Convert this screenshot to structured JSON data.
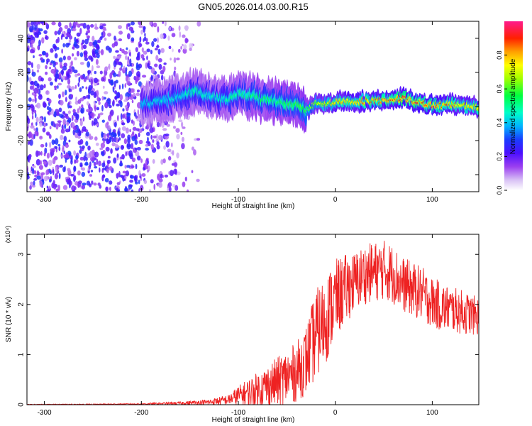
{
  "title": "GN05.2026.014.03.00.R15",
  "chart_data": [
    {
      "type": "heatmap",
      "xlabel": "Height of straight line (km)",
      "ylabel": "Frequency (Hz)",
      "xlim": [
        -318,
        148
      ],
      "ylim": [
        -50,
        50
      ],
      "xticks": [
        -300,
        -200,
        -100,
        0,
        100
      ],
      "yticks": [
        -40,
        -20,
        0,
        20,
        40
      ],
      "xtick_labels": [
        "-300",
        "-200",
        "-100",
        "0",
        "100"
      ],
      "ytick_labels": [
        "-40",
        "-20",
        "0",
        "20",
        "40"
      ],
      "colorbar": {
        "label": "Normalized spectral amplitude",
        "range": [
          0,
          1
        ],
        "ticks": [
          0.0,
          0.2,
          0.4,
          0.6,
          0.8
        ],
        "tick_labels": [
          "0.0",
          "0.2",
          "0.4",
          "0.6",
          "0.8"
        ],
        "colors": [
          "#ffffff",
          "#c9a8f2",
          "#8a2be2",
          "#1a1aff",
          "#00c8ff",
          "#00ff80",
          "#7fff00",
          "#ffff00",
          "#ff8c00",
          "#ff0000",
          "#ff1493"
        ]
      },
      "ridge": {
        "x": [
          -200,
          -180,
          -160,
          -145,
          -130,
          -110,
          -100,
          -80,
          -60,
          -40,
          -30,
          -20,
          -10,
          0,
          20,
          40,
          60,
          70,
          80,
          90,
          100,
          120,
          140,
          148
        ],
        "frequency": [
          2,
          3,
          6,
          9,
          6,
          4,
          8,
          5,
          3,
          1,
          -2,
          2,
          1,
          3,
          3,
          3,
          4,
          5,
          3,
          2,
          1,
          1,
          0,
          0
        ],
        "amplitude": [
          0.4,
          0.45,
          0.45,
          0.5,
          0.45,
          0.5,
          0.5,
          0.55,
          0.55,
          0.6,
          0.6,
          0.7,
          0.75,
          0.8,
          0.85,
          0.85,
          0.9,
          0.95,
          0.9,
          0.9,
          0.9,
          0.85,
          0.8,
          0.8
        ]
      },
      "noise_region": {
        "x_range": [
          -318,
          -200
        ],
        "amplitude": 0.25
      }
    },
    {
      "type": "line",
      "xlabel": "Height of straight line (km)",
      "ylabel": "SNR (10 * v/v)",
      "y_multiplier": "(x10⁴)",
      "xlim": [
        -318,
        148
      ],
      "ylim": [
        0,
        3.4
      ],
      "xticks": [
        -300,
        -200,
        -100,
        0,
        100
      ],
      "yticks": [
        0,
        1,
        2,
        3
      ],
      "xtick_labels": [
        "-300",
        "-200",
        "-100",
        "0",
        "100"
      ],
      "ytick_labels": [
        "0",
        "1",
        "2",
        "3"
      ],
      "color": "#ff0000",
      "envelope": {
        "x": [
          -318,
          -250,
          -200,
          -160,
          -130,
          -110,
          -100,
          -80,
          -60,
          -40,
          -30,
          -20,
          -10,
          0,
          10,
          20,
          30,
          40,
          50,
          60,
          70,
          80,
          90,
          100,
          110,
          120,
          130,
          140,
          148
        ],
        "mean": [
          0.005,
          0.008,
          0.015,
          0.03,
          0.05,
          0.1,
          0.18,
          0.3,
          0.45,
          0.65,
          0.9,
          1.4,
          1.7,
          2.1,
          2.3,
          2.45,
          2.6,
          2.65,
          2.7,
          2.6,
          2.4,
          2.3,
          2.2,
          2.05,
          1.95,
          1.9,
          1.85,
          1.8,
          1.75
        ],
        "amplitude": [
          0.005,
          0.008,
          0.012,
          0.03,
          0.06,
          0.1,
          0.2,
          0.35,
          0.5,
          0.6,
          0.7,
          0.9,
          0.9,
          0.8,
          0.7,
          0.6,
          0.6,
          0.6,
          0.6,
          0.6,
          0.55,
          0.55,
          0.55,
          0.5,
          0.5,
          0.45,
          0.45,
          0.4,
          0.4
        ]
      }
    }
  ]
}
